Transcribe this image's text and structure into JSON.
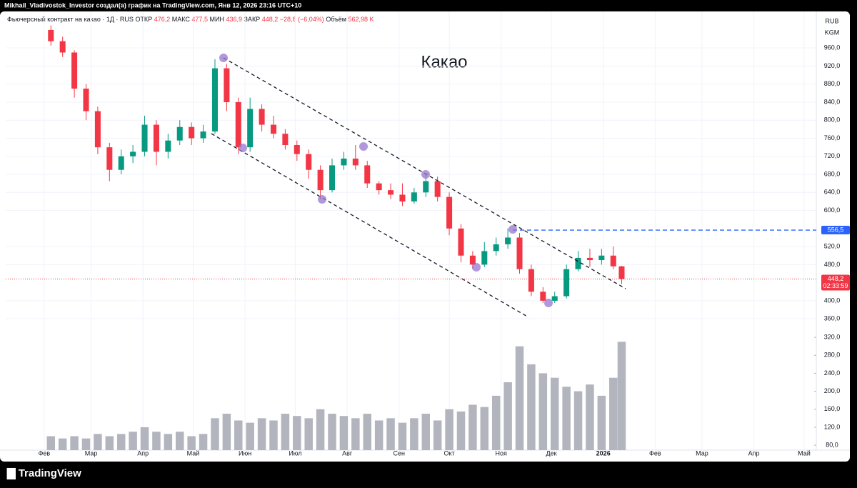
{
  "header": {
    "text": "Mikhail_Vladivostok_Investor создал(а) график на TradingView.com, Янв 12, 2026 23:16 UTC+10"
  },
  "footer": {
    "brand": "TradingView"
  },
  "chart_data": {
    "type": "candlestick",
    "title": "Какао",
    "legend": {
      "name": "Фьючерсный контракт на какао · 1Д · RUS",
      "items": [
        {
          "label": "ОТКР",
          "value": "476,2"
        },
        {
          "label": "МАКС",
          "value": "477,5"
        },
        {
          "label": "МИН",
          "value": "436,9"
        },
        {
          "label": "ЗАКР",
          "value": "448,2"
        },
        {
          "label": "",
          "value": "−28,8 (−6,04%)"
        },
        {
          "label": "Объём",
          "value": "562,98 K"
        }
      ]
    },
    "currency": "RUB",
    "unit": "KGM",
    "x": [
      35,
      42,
      49,
      56,
      63,
      70,
      77,
      84,
      91,
      98,
      105,
      112,
      119,
      126,
      133,
      140,
      147,
      154,
      161,
      168,
      175,
      182,
      189,
      196,
      203,
      210,
      217,
      224,
      231,
      238,
      245,
      252,
      259,
      266,
      273,
      280,
      287,
      294,
      301,
      308,
      315,
      322,
      329,
      336,
      343,
      350,
      357,
      364,
      371,
      376
    ],
    "open": [
      1000,
      975,
      950,
      870,
      820,
      740,
      690,
      720,
      730,
      790,
      730,
      755,
      785,
      760,
      775,
      915,
      840,
      740,
      825,
      790,
      770,
      745,
      725,
      690,
      645,
      700,
      715,
      700,
      660,
      645,
      635,
      620,
      640,
      665,
      630,
      560,
      500,
      480,
      510,
      525,
      540,
      470,
      420,
      400,
      410,
      470,
      495,
      490,
      500,
      476.2
    ],
    "high": [
      1010,
      985,
      955,
      880,
      830,
      750,
      735,
      745,
      810,
      800,
      770,
      800,
      795,
      790,
      935,
      925,
      850,
      850,
      835,
      810,
      780,
      755,
      735,
      700,
      715,
      730,
      745,
      710,
      665,
      660,
      660,
      650,
      680,
      675,
      640,
      570,
      510,
      530,
      540,
      560,
      550,
      480,
      430,
      420,
      480,
      510,
      515,
      515,
      520,
      477.5
    ],
    "low": [
      965,
      940,
      850,
      800,
      725,
      665,
      680,
      705,
      720,
      700,
      715,
      745,
      745,
      750,
      770,
      820,
      725,
      730,
      775,
      760,
      735,
      710,
      670,
      625,
      640,
      690,
      690,
      650,
      635,
      625,
      610,
      615,
      630,
      620,
      545,
      485,
      470,
      475,
      500,
      515,
      460,
      410,
      395,
      395,
      405,
      465,
      475,
      480,
      470,
      436.9
    ],
    "close": [
      975,
      950,
      870,
      820,
      740,
      690,
      720,
      730,
      790,
      730,
      755,
      785,
      760,
      775,
      915,
      840,
      740,
      825,
      790,
      770,
      745,
      725,
      690,
      645,
      700,
      715,
      700,
      660,
      645,
      635,
      620,
      640,
      665,
      630,
      560,
      500,
      480,
      510,
      525,
      540,
      470,
      420,
      400,
      410,
      470,
      495,
      490,
      500,
      476.2,
      448.2
    ],
    "volume": [
      100,
      95,
      100,
      95,
      105,
      100,
      105,
      110,
      120,
      110,
      105,
      110,
      100,
      105,
      140,
      150,
      135,
      130,
      140,
      135,
      150,
      145,
      140,
      160,
      150,
      145,
      140,
      150,
      135,
      140,
      130,
      140,
      150,
      135,
      160,
      155,
      170,
      165,
      190,
      220,
      300,
      260,
      240,
      230,
      210,
      200,
      215,
      190,
      230,
      310
    ],
    "up_color": "#089981",
    "down_color": "#f23645",
    "volume_color": "#b2b5be",
    "grid": true,
    "xlim": [
      8,
      491
    ],
    "xticks": [
      {
        "value": 31,
        "label": "Фев"
      },
      {
        "value": 59,
        "label": "Мар"
      },
      {
        "value": 90,
        "label": "Апр"
      },
      {
        "value": 120,
        "label": "Май"
      },
      {
        "value": 151,
        "label": "Июн"
      },
      {
        "value": 181,
        "label": "Июл"
      },
      {
        "value": 212,
        "label": "Авг"
      },
      {
        "value": 243,
        "label": "Сен"
      },
      {
        "value": 273,
        "label": "Окт"
      },
      {
        "value": 304,
        "label": "Ноя"
      },
      {
        "value": 334,
        "label": "Дек"
      },
      {
        "value": 365,
        "label": "2026"
      },
      {
        "value": 396,
        "label": "Фев"
      },
      {
        "value": 424,
        "label": "Мар"
      },
      {
        "value": 455,
        "label": "Апр"
      },
      {
        "value": 485,
        "label": "Май"
      }
    ],
    "ylim": [
      69,
      1041
    ],
    "yticks": [
      {
        "value": 360,
        "label": "360,0"
      },
      {
        "value": 400,
        "label": "400,0"
      },
      {
        "value": 480,
        "label": "480,0"
      },
      {
        "value": 520,
        "label": "520,0"
      },
      {
        "value": 600,
        "label": "600,0"
      },
      {
        "value": 640,
        "label": "640,0"
      },
      {
        "value": 680,
        "label": "680,0"
      },
      {
        "value": 720,
        "label": "720,0"
      },
      {
        "value": 760,
        "label": "760,0"
      },
      {
        "value": 800,
        "label": "800,0"
      },
      {
        "value": 840,
        "label": "840,0"
      },
      {
        "value": 880,
        "label": "880,0"
      },
      {
        "value": 920,
        "label": "920,0"
      },
      {
        "value": 960,
        "label": "960,0"
      }
    ],
    "volume_ylim": [
      69,
      1045
    ],
    "volume_yticks": [
      {
        "value": 80,
        "label": "80,0"
      },
      {
        "value": 120,
        "label": "120,0"
      },
      {
        "value": 160,
        "label": "160,0"
      },
      {
        "value": 200,
        "label": "200,0"
      },
      {
        "value": 240,
        "label": "240,0"
      },
      {
        "value": 280,
        "label": "280,0"
      },
      {
        "value": 320,
        "label": "320,0"
      }
    ],
    "price_lines": [
      {
        "value": 556.5,
        "label": "556,5",
        "color": "#2962ff"
      },
      {
        "value": 448.2,
        "label": "448,2",
        "color": "#f23645",
        "countdown": "02:33:59"
      }
    ]
  }
}
